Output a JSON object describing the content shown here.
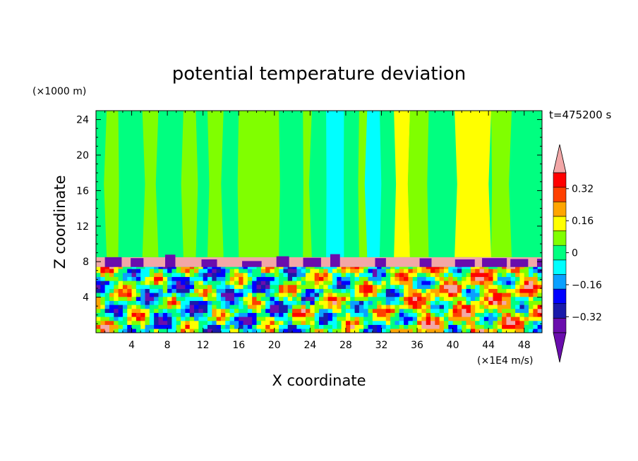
{
  "chart_data": {
    "type": "heatmap",
    "title": "potential temperature deviation",
    "xlabel": "X coordinate",
    "ylabel": "Z coordinate",
    "x_unit": "(×1E4 m/s)",
    "y_unit": "(×1000 m)",
    "time_label": "t=475200 s",
    "xlim": [
      0,
      50
    ],
    "ylim": [
      0,
      25
    ],
    "x_ticks": [
      "4",
      "8",
      "12",
      "16",
      "20",
      "24",
      "28",
      "32",
      "36",
      "40",
      "44",
      "48"
    ],
    "x_tick_values": [
      4,
      8,
      12,
      16,
      20,
      24,
      28,
      32,
      36,
      40,
      44,
      48
    ],
    "y_ticks": [
      "4",
      "8",
      "12",
      "16",
      "20",
      "24"
    ],
    "y_tick_values": [
      4,
      8,
      12,
      16,
      20,
      24
    ],
    "colorbar": {
      "levels": [
        -0.4,
        -0.32,
        -0.24,
        -0.16,
        -0.08,
        0,
        0.08,
        0.16,
        0.24,
        0.32,
        0.4
      ],
      "labels": [
        "0.32",
        "0.16",
        "0",
        "−0.16",
        "−0.32"
      ],
      "label_values": [
        0.32,
        0.16,
        0,
        -0.16,
        -0.32
      ],
      "colors": [
        "#6a0dad",
        "#1a1aaa",
        "#0000ff",
        "#0aa0ff",
        "#00ffff",
        "#00ff80",
        "#80ff00",
        "#ffff00",
        "#ffa500",
        "#ff4000",
        "#ff0000"
      ],
      "over_color": "#f2a7a7",
      "under_color": "#6a0dad"
    },
    "upper_columns": [
      {
        "x": [
          0,
          1.2
        ],
        "level": 0
      },
      {
        "x": [
          1.2,
          2.5
        ],
        "level": 1
      },
      {
        "x": [
          2.5,
          5.2
        ],
        "level": 0
      },
      {
        "x": [
          5.2,
          7.0
        ],
        "level": 1
      },
      {
        "x": [
          7.0,
          9.8
        ],
        "level": 0
      },
      {
        "x": [
          9.8,
          11.2
        ],
        "level": 1
      },
      {
        "x": [
          11.2,
          12.5
        ],
        "level": 0
      },
      {
        "x": [
          12.5,
          14.3
        ],
        "level": 1
      },
      {
        "x": [
          14.3,
          16.0
        ],
        "level": 0
      },
      {
        "x": [
          16.0,
          20.5
        ],
        "level": 1
      },
      {
        "x": [
          20.5,
          23.2
        ],
        "level": 0
      },
      {
        "x": [
          23.2,
          24.2
        ],
        "level": 1
      },
      {
        "x": [
          24.2,
          25.8
        ],
        "level": 0
      },
      {
        "x": [
          25.8,
          27.8
        ],
        "level": -1
      },
      {
        "x": [
          27.8,
          29.5
        ],
        "level": 0
      },
      {
        "x": [
          29.5,
          30.4
        ],
        "level": 1
      },
      {
        "x": [
          30.4,
          31.8
        ],
        "level": -1
      },
      {
        "x": [
          31.8,
          33.4
        ],
        "level": 0
      },
      {
        "x": [
          33.4,
          35.2
        ],
        "level": 2
      },
      {
        "x": [
          35.2,
          37.3
        ],
        "level": 1
      },
      {
        "x": [
          37.3,
          40.2
        ],
        "level": 0
      },
      {
        "x": [
          40.2,
          44.3
        ],
        "level": 2
      },
      {
        "x": [
          44.3,
          46.6
        ],
        "level": 1
      },
      {
        "x": [
          46.6,
          50.0
        ],
        "level": 0
      }
    ],
    "inversion_layer": {
      "z": [
        7.4,
        8.5
      ],
      "color": "#f2a7a7"
    },
    "turbulent_layer_top": 7.4
  }
}
